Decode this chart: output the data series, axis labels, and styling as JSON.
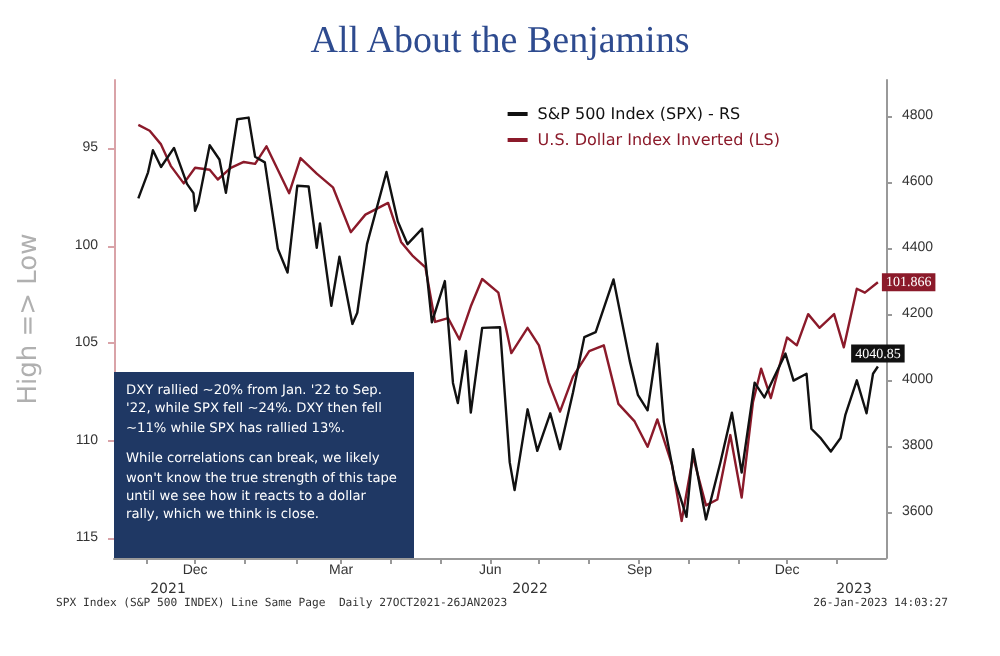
{
  "chart_data": {
    "type": "line",
    "title": "All About the Benjamins",
    "ylabel": "High => Low",
    "xlim": [
      "2021-10-12",
      "2023-01-31"
    ],
    "xticks": [
      {
        "value": "2021-11-01",
        "label": null
      },
      {
        "value": "2021-12-01",
        "label": "Dec"
      },
      {
        "value": "2022-01-01",
        "label": null
      },
      {
        "value": "2022-02-01",
        "label": null
      },
      {
        "value": "2022-03-01",
        "label": "Mar"
      },
      {
        "value": "2022-04-01",
        "label": null
      },
      {
        "value": "2022-05-01",
        "label": null
      },
      {
        "value": "2022-06-01",
        "label": "Jun"
      },
      {
        "value": "2022-07-01",
        "label": null
      },
      {
        "value": "2022-08-01",
        "label": null
      },
      {
        "value": "2022-09-01",
        "label": "Sep"
      },
      {
        "value": "2022-10-01",
        "label": null
      },
      {
        "value": "2022-11-01",
        "label": null
      },
      {
        "value": "2022-12-01",
        "label": "Dec"
      },
      {
        "value": "2023-01-01",
        "label": null
      }
    ],
    "ylim": [
      116,
      91.5
    ],
    "yticks": [
      95,
      100,
      105,
      110,
      115
    ],
    "y2lim": [
      3460,
      4910
    ],
    "y2ticks": [
      3600,
      3800,
      4000,
      4200,
      4400,
      4600,
      4800
    ],
    "legend": "top right",
    "grid": false,
    "marker": "none",
    "line_style": "solid",
    "annotations": [
      "DXY rallied ~20% from Jan. '22 to Sep. '22, while SPX fell ~24%. DXY then fell ~11% while SPX has rallied 13%.",
      "While correlations can break, we likely won't know the true strength of this tape until we see how it reacts to a dollar rally, which we think is close.",
      "SPX Index (S&P 500 INDEX) Line Same Page  Daily 27OCT2021-26JAN2023",
      "26-Jan-2023 14:03:27",
      "2021",
      "2022",
      "2023"
    ],
    "series": [
      {
        "name": "S&P 500 Index (SPX) - RS",
        "color": "#111111",
        "axis": "y2",
        "x": [
          "2021-10-27",
          "2021-11-02",
          "2021-11-05",
          "2021-11-10",
          "2021-11-18",
          "2021-11-26",
          "2021-11-30",
          "2021-12-01",
          "2021-12-03",
          "2021-12-10",
          "2021-12-16",
          "2021-12-20",
          "2021-12-27",
          "2022-01-03",
          "2022-01-07",
          "2022-01-13",
          "2022-01-21",
          "2022-01-27",
          "2022-02-02",
          "2022-02-09",
          "2022-02-14",
          "2022-02-16",
          "2022-02-23",
          "2022-02-28",
          "2022-03-08",
          "2022-03-11",
          "2022-03-17",
          "2022-03-29",
          "2022-04-05",
          "2022-04-11",
          "2022-04-20",
          "2022-04-26",
          "2022-05-04",
          "2022-05-09",
          "2022-05-12",
          "2022-05-17",
          "2022-05-20",
          "2022-05-27",
          "2022-06-07",
          "2022-06-13",
          "2022-06-16",
          "2022-06-24",
          "2022-06-30",
          "2022-07-08",
          "2022-07-14",
          "2022-07-22",
          "2022-07-29",
          "2022-08-05",
          "2022-08-16",
          "2022-08-26",
          "2022-08-31",
          "2022-09-06",
          "2022-09-12",
          "2022-09-16",
          "2022-09-23",
          "2022-09-30",
          "2022-10-04",
          "2022-10-12",
          "2022-10-21",
          "2022-10-28",
          "2022-11-03",
          "2022-11-11",
          "2022-11-17",
          "2022-11-30",
          "2022-12-05",
          "2022-12-13",
          "2022-12-16",
          "2022-12-22",
          "2022-12-28",
          "2023-01-03",
          "2023-01-06",
          "2023-01-13",
          "2023-01-19",
          "2023-01-23",
          "2023-01-26"
        ],
        "values": [
          4551,
          4630,
          4697,
          4646,
          4704,
          4595,
          4567,
          4513,
          4538,
          4712,
          4669,
          4568,
          4791,
          4796,
          4677,
          4660,
          4398,
          4326,
          4589,
          4587,
          4401,
          4475,
          4225,
          4374,
          4170,
          4204,
          4412,
          4631,
          4481,
          4412,
          4459,
          4175,
          4300,
          3991,
          3930,
          4088,
          3901,
          4158,
          4160,
          3750,
          3666,
          3911,
          3785,
          3899,
          3790,
          3962,
          4130,
          4145,
          4305,
          4058,
          3955,
          3908,
          4110,
          3873,
          3693,
          3585,
          3790,
          3577,
          3752,
          3901,
          3719,
          3992,
          3947,
          4080,
          3998,
          4019,
          3852,
          3822,
          3783,
          3824,
          3895,
          3999,
          3899,
          4019,
          4040.85
        ],
        "value_labels": [
          null,
          null,
          null,
          null,
          null,
          null,
          null,
          null,
          null,
          null,
          null,
          null,
          null,
          null,
          null,
          null,
          null,
          null,
          null,
          null,
          null,
          null,
          null,
          null,
          null,
          null,
          null,
          null,
          null,
          null,
          null,
          null,
          null,
          null,
          null,
          null,
          null,
          null,
          null,
          null,
          null,
          null,
          null,
          null,
          null,
          null,
          null,
          null,
          null,
          null,
          null,
          null,
          null,
          null,
          null,
          null,
          null,
          null,
          null,
          null,
          null,
          null,
          null,
          null,
          null,
          null,
          null,
          null,
          null,
          null,
          null,
          null,
          null,
          null,
          "4040.85"
        ]
      },
      {
        "name": "U.S. Dollar Index Inverted (LS)",
        "color": "#8b1a2a",
        "x": [
          "2021-10-27",
          "2021-11-03",
          "2021-11-10",
          "2021-11-16",
          "2021-11-24",
          "2021-12-01",
          "2021-12-10",
          "2021-12-15",
          "2021-12-23",
          "2021-12-31",
          "2022-01-07",
          "2022-01-14",
          "2022-01-28",
          "2022-02-04",
          "2022-02-14",
          "2022-02-24",
          "2022-03-07",
          "2022-03-16",
          "2022-03-30",
          "2022-04-07",
          "2022-04-14",
          "2022-04-22",
          "2022-04-28",
          "2022-05-06",
          "2022-05-13",
          "2022-05-20",
          "2022-05-27",
          "2022-06-06",
          "2022-06-14",
          "2022-06-24",
          "2022-07-01",
          "2022-07-07",
          "2022-07-14",
          "2022-07-22",
          "2022-08-01",
          "2022-08-10",
          "2022-08-19",
          "2022-08-29",
          "2022-09-06",
          "2022-09-12",
          "2022-09-21",
          "2022-09-27",
          "2022-10-04",
          "2022-10-12",
          "2022-10-19",
          "2022-10-27",
          "2022-11-03",
          "2022-11-10",
          "2022-11-15",
          "2022-11-21",
          "2022-12-01",
          "2022-12-07",
          "2022-12-14",
          "2022-12-21",
          "2022-12-30",
          "2023-01-05",
          "2023-01-13",
          "2023-01-18",
          "2023-01-26"
        ],
        "values": [
          93.8,
          94.1,
          94.8,
          95.9,
          96.8,
          96.0,
          96.1,
          96.6,
          96.0,
          95.7,
          95.8,
          94.9,
          97.3,
          95.5,
          96.3,
          97.0,
          99.3,
          98.4,
          97.8,
          99.8,
          100.5,
          101.1,
          103.9,
          103.7,
          104.8,
          103.1,
          101.7,
          102.4,
          105.5,
          104.2,
          105.1,
          107.0,
          108.5,
          106.7,
          105.4,
          105.1,
          108.1,
          109.0,
          110.3,
          108.9,
          111.2,
          114.1,
          110.8,
          113.3,
          113.0,
          109.7,
          112.9,
          108.0,
          106.3,
          107.8,
          104.7,
          105.1,
          103.5,
          104.2,
          103.5,
          105.2,
          102.2,
          102.4,
          101.866
        ],
        "value_labels": [
          null,
          null,
          null,
          null,
          null,
          null,
          null,
          null,
          null,
          null,
          null,
          null,
          null,
          null,
          null,
          null,
          null,
          null,
          null,
          null,
          null,
          null,
          null,
          null,
          null,
          null,
          null,
          null,
          null,
          null,
          null,
          null,
          null,
          null,
          null,
          null,
          null,
          null,
          null,
          null,
          null,
          null,
          null,
          null,
          null,
          null,
          null,
          null,
          null,
          null,
          null,
          null,
          null,
          null,
          null,
          null,
          null,
          null,
          "101.866"
        ]
      }
    ]
  }
}
